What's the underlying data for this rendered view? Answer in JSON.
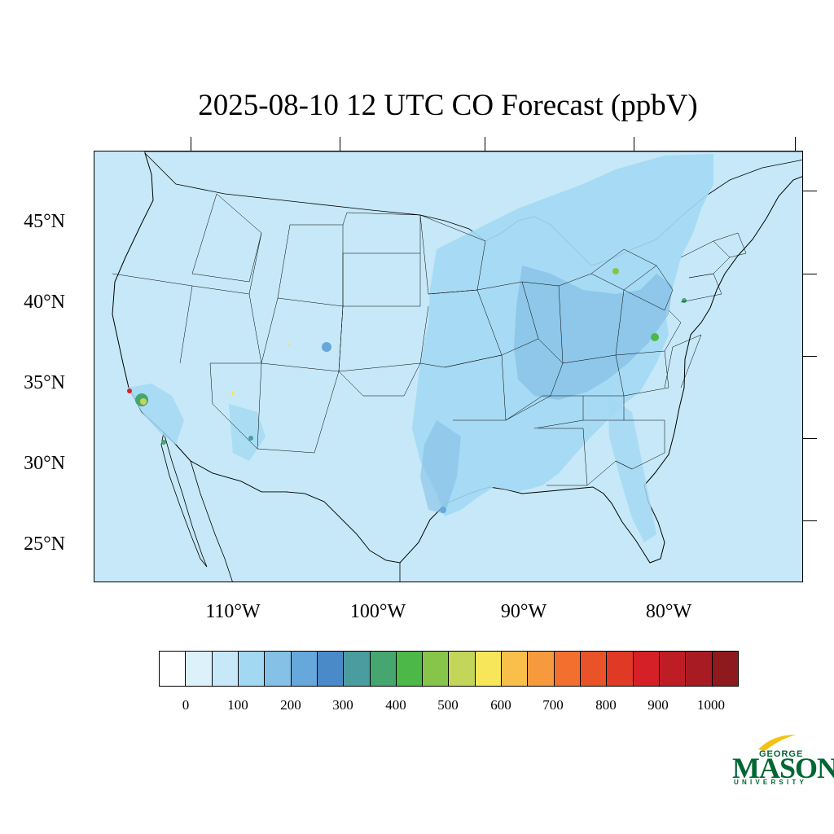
{
  "title": "2025-08-10 12 UTC CO Forecast (ppbV)",
  "lat_labels": [
    {
      "label": "45°N",
      "value": 45
    },
    {
      "label": "40°N",
      "value": 40
    },
    {
      "label": "35°N",
      "value": 35
    },
    {
      "label": "30°N",
      "value": 30
    },
    {
      "label": "25°N",
      "value": 25
    }
  ],
  "lon_labels": [
    {
      "label": "110°W",
      "value": -110
    },
    {
      "label": "100°W",
      "value": -100
    },
    {
      "label": "90°W",
      "value": -90
    },
    {
      "label": "80°W",
      "value": -80
    }
  ],
  "colorbar": {
    "colors": [
      "#ffffff",
      "#ddf1fb",
      "#c6e8f8",
      "#a3d8f3",
      "#85c0e6",
      "#66a8db",
      "#4a8ac8",
      "#4a9c9e",
      "#45a66f",
      "#4cb848",
      "#86c44a",
      "#c4d65a",
      "#f7e65a",
      "#f8bf4a",
      "#f79a3e",
      "#f26f2d",
      "#ea5228",
      "#e03a26",
      "#d52027",
      "#bf1d25",
      "#a91b22",
      "#8e1a1e"
    ],
    "labels": [
      "0",
      "100",
      "200",
      "300",
      "400",
      "500",
      "600",
      "700",
      "800",
      "900",
      "1000"
    ]
  },
  "logo": {
    "line1": "GEORGE",
    "line2": "MASON",
    "line3": "UNIVERSITY"
  }
}
